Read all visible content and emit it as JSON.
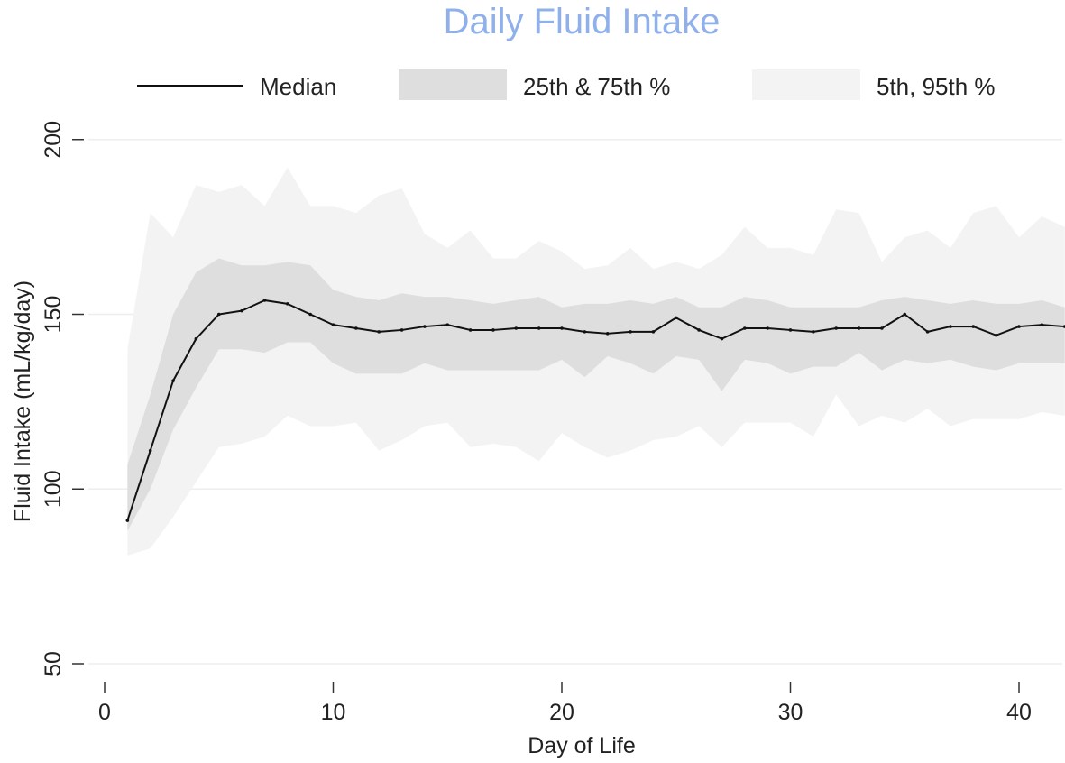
{
  "chart_data": {
    "type": "line",
    "title": "Daily Fluid Intake",
    "xlabel": "Day of Life",
    "ylabel": "Fluid Intake (mL/kg/day)",
    "xlim": [
      0,
      42
    ],
    "ylim": [
      45,
      210
    ],
    "x_ticks": [
      0,
      10,
      20,
      30,
      40
    ],
    "y_ticks": [
      50,
      100,
      150,
      200
    ],
    "grid": true,
    "legend_placement": "top",
    "colors": {
      "title": "#8fb0ea",
      "median": "#111111",
      "iqr_band": "#dedede",
      "outer_band": "#f3f3f3",
      "grid": "#eeeeee"
    },
    "legend": [
      {
        "label": "Median"
      },
      {
        "label": "25th & 75th %"
      },
      {
        "label": "5th, 95th %"
      }
    ],
    "x": [
      1,
      2,
      3,
      4,
      5,
      6,
      7,
      8,
      9,
      10,
      11,
      12,
      13,
      14,
      15,
      16,
      17,
      18,
      19,
      20,
      21,
      22,
      23,
      24,
      25,
      26,
      27,
      28,
      29,
      30,
      31,
      32,
      33,
      34,
      35,
      36,
      37,
      38,
      39,
      40,
      41,
      42
    ],
    "series": [
      {
        "name": "Median",
        "values": [
          91,
          111,
          131,
          143,
          150,
          151,
          154,
          153,
          150,
          147,
          146,
          145,
          145.5,
          146.5,
          147,
          145.5,
          145.5,
          146,
          146,
          146,
          145,
          144.5,
          145,
          145,
          149,
          145.5,
          143,
          146,
          146,
          145.5,
          145,
          146,
          146,
          146,
          150,
          145,
          146.5,
          146.5,
          144,
          146.5,
          147,
          146.5
        ]
      },
      {
        "name": "25th & 75th %",
        "low": [
          88,
          100,
          117,
          129,
          140,
          140,
          139,
          142,
          142,
          136,
          133,
          133,
          133,
          136,
          134,
          134,
          134,
          134,
          134,
          137,
          132,
          138,
          136,
          133,
          138,
          137,
          128,
          137,
          136,
          133,
          135,
          135,
          139,
          134,
          137,
          136,
          137,
          135,
          134,
          136,
          136,
          136
        ],
        "high": [
          107,
          127,
          150,
          162,
          166,
          164,
          164,
          165,
          164,
          157,
          155,
          154,
          156,
          155,
          155,
          154,
          153,
          154,
          155,
          152,
          153,
          153,
          154,
          153,
          155,
          152,
          152,
          155,
          154,
          152,
          152,
          152,
          152,
          154,
          155,
          154,
          153,
          154,
          153,
          153,
          154,
          152
        ]
      },
      {
        "name": "5th, 95th %",
        "low": [
          81,
          83,
          92,
          102,
          112,
          113,
          115,
          121,
          118,
          118,
          119,
          111,
          114,
          118,
          119,
          112,
          113,
          112,
          108,
          116,
          112,
          109,
          111,
          114,
          115,
          118,
          112,
          119,
          119,
          119,
          115,
          127,
          118,
          121,
          119,
          123,
          118,
          120,
          120,
          120,
          122,
          121
        ],
        "high": [
          140,
          179,
          172,
          187,
          185,
          187,
          181,
          192,
          181,
          181,
          179,
          184,
          186,
          173,
          169,
          174,
          166,
          166,
          171,
          168,
          163,
          164,
          169,
          163,
          165,
          163,
          167,
          175,
          169,
          169,
          167,
          180,
          179,
          165,
          172,
          174,
          169,
          179,
          181,
          172,
          178,
          175
        ]
      }
    ]
  }
}
